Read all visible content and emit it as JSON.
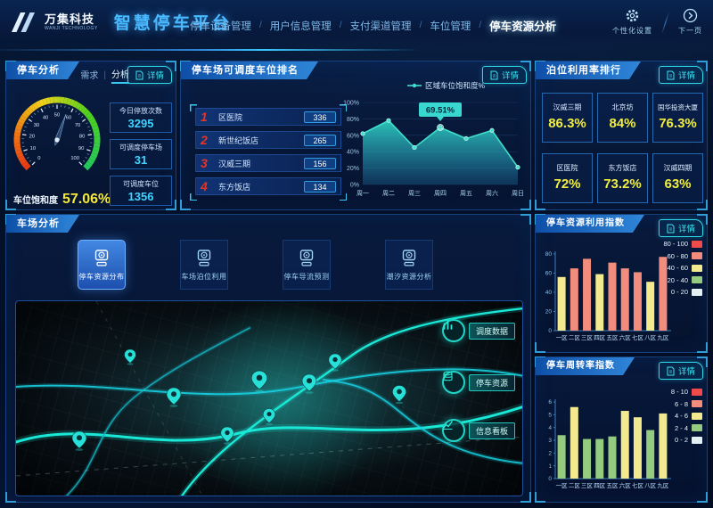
{
  "header": {
    "logo_cn": "万集科技",
    "logo_en": "WANJI TECHNOLOGY",
    "platform_title": "智慧停车平台",
    "nav_separator": "/",
    "nav": [
      {
        "label": "停车设备管理",
        "active": false
      },
      {
        "label": "用户信息管理",
        "active": false
      },
      {
        "label": "支付渠道管理",
        "active": false
      },
      {
        "label": "车位管理",
        "active": false
      },
      {
        "label": "停车资源分析",
        "active": true
      }
    ],
    "settings_label": "个性化设置",
    "next_page_label": "下一页"
  },
  "parking_analysis": {
    "title": "停车分析",
    "tabs": [
      "需求",
      "分析"
    ],
    "tab_separator": "|",
    "active_tab": "分析",
    "detail_label": "详情",
    "gauge": {
      "label": "车位饱和度",
      "display": "57.06%"
    },
    "stats": [
      {
        "label": "今日停放次数",
        "value": "3295"
      },
      {
        "label": "可调度停车场",
        "value": "31"
      },
      {
        "label": "可调度车位",
        "value": "1356"
      }
    ]
  },
  "dispatch_ranking": {
    "title": "停车场可调度车位排名",
    "detail_label": "详情",
    "items": [
      {
        "rank": "1",
        "name": "区医院",
        "value": "336"
      },
      {
        "rank": "2",
        "name": "新世纪饭店",
        "value": "265"
      },
      {
        "rank": "3",
        "name": "汉威三期",
        "value": "156"
      },
      {
        "rank": "4",
        "name": "东方饭店",
        "value": "134"
      }
    ]
  },
  "berth_ranking": {
    "title": "泊位利用率排行",
    "detail_label": "详情",
    "cards": [
      {
        "name": "汉威三期",
        "value": "86.3%"
      },
      {
        "name": "北京坊",
        "value": "84%"
      },
      {
        "name": "国华投资大厦",
        "value": "76.3%"
      },
      {
        "name": "区医院",
        "value": "72%"
      },
      {
        "name": "东方饭店",
        "value": "73.2%"
      },
      {
        "name": "汉威四期",
        "value": "63%"
      }
    ]
  },
  "lot_analysis": {
    "title": "车场分析",
    "buttons": [
      {
        "label": "停车资源分布",
        "active": true
      },
      {
        "label": "车场泊位利用",
        "active": false
      },
      {
        "label": "停车导流预测",
        "active": false
      },
      {
        "label": "潮汐资源分析",
        "active": false
      }
    ],
    "map_buttons": [
      "调度数据",
      "停车资源",
      "信息看板"
    ]
  },
  "resource_index_panel": {
    "title": "停车资源利用指数",
    "detail_label": "详情"
  },
  "turnover_index_panel": {
    "title": "停车周转率指数",
    "detail_label": "详情"
  },
  "chart_data": [
    {
      "id": "saturation_gauge",
      "type": "gauge",
      "title": "车位饱和度",
      "value": 57.06,
      "display": "57.06%",
      "min": 0,
      "max": 100,
      "tick_labels": [
        "0",
        "10",
        "20",
        "30",
        "40",
        "50",
        "60",
        "70",
        "80",
        "90",
        "100"
      ]
    },
    {
      "id": "saturation_line",
      "type": "area",
      "title": "区域车位饱和度%",
      "x": [
        "周一",
        "周二",
        "周三",
        "周四",
        "周五",
        "周六",
        "周日"
      ],
      "values": [
        62,
        78,
        45,
        69.51,
        56,
        66,
        21
      ],
      "tooltip": {
        "x": "周四",
        "index": 3,
        "label": "69.51%"
      },
      "ylim": [
        0,
        100
      ],
      "yticks": [
        0,
        20,
        40,
        60,
        80,
        100
      ],
      "ytick_labels": [
        "0%",
        "20%",
        "40%",
        "60%",
        "80%",
        "100%"
      ],
      "line_color": "#3fe0cd",
      "legend_position": "top"
    },
    {
      "id": "resource_index",
      "type": "bar",
      "title": "停车资源利用指数",
      "categories": [
        "一区",
        "二区",
        "三区",
        "四区",
        "五区",
        "六区",
        "七区",
        "八区",
        "九区"
      ],
      "values": [
        56,
        65,
        75,
        59,
        71,
        65,
        61,
        51,
        77
      ],
      "ylim": [
        0,
        80
      ],
      "yticks": [
        0,
        20,
        40,
        60,
        80
      ],
      "legend": [
        {
          "label": "80 - 100",
          "color": "#F04B4B"
        },
        {
          "label": "60 - 80",
          "color": "#F28D7E"
        },
        {
          "label": "40 - 60",
          "color": "#F3E98E"
        },
        {
          "label": "20 - 40",
          "color": "#95CB7F"
        },
        {
          "label": "0 - 20",
          "color": "#E3F0F2"
        }
      ],
      "bands": [
        [
          80,
          "#F04B4B"
        ],
        [
          60,
          "#F28D7E"
        ],
        [
          40,
          "#F3E98E"
        ],
        [
          20,
          "#95CB7F"
        ],
        [
          0,
          "#E3F0F2"
        ]
      ],
      "legend_position": "right"
    },
    {
      "id": "turnover_index",
      "type": "bar",
      "title": "停车周转率指数",
      "categories": [
        "一区",
        "二区",
        "三区",
        "四区",
        "五区",
        "六区",
        "七区",
        "八区",
        "九区"
      ],
      "values": [
        3.4,
        5.6,
        3.1,
        3.1,
        3.3,
        5.3,
        4.8,
        3.8,
        5.1
      ],
      "ylim": [
        0,
        6
      ],
      "yticks": [
        0,
        1,
        2,
        3,
        4,
        5,
        6
      ],
      "legend": [
        {
          "label": "8 - 10",
          "color": "#F04B4B"
        },
        {
          "label": "6 - 8",
          "color": "#F28D7E"
        },
        {
          "label": "4 - 6",
          "color": "#F3E98E"
        },
        {
          "label": "2 - 4",
          "color": "#95CB7F"
        },
        {
          "label": "0 - 2",
          "color": "#E3F0F2"
        }
      ],
      "bands": [
        [
          8,
          "#F04B4B"
        ],
        [
          6,
          "#F28D7E"
        ],
        [
          4,
          "#F3E98E"
        ],
        [
          2,
          "#95CB7F"
        ],
        [
          0,
          "#E3F0F2"
        ]
      ],
      "legend_position": "right"
    }
  ]
}
